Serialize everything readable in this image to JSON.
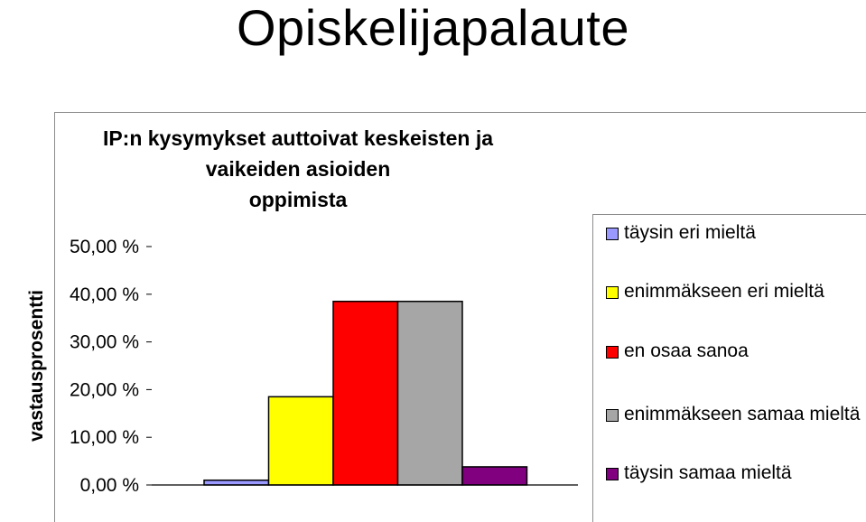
{
  "slide": {
    "title": "Opiskelijapalaute"
  },
  "chart_data": {
    "type": "bar",
    "title": "IP:n kysymykset auttoivat keskeisten ja vaikeiden asioiden oppimista",
    "title_lines": [
      "IP:n kysymykset auttoivat keskeisten ja vaikeiden asioiden",
      "oppimista"
    ],
    "xlabel": "",
    "ylabel": "vastausprosentti",
    "ylim": [
      0,
      50
    ],
    "yticks": [
      0,
      10,
      20,
      30,
      40,
      50
    ],
    "ytick_labels": [
      "0,00 %",
      "10,00 %",
      "20,00 %",
      "30,00 %",
      "40,00 %",
      "50,00 %"
    ],
    "grid": false,
    "legend_position": "right",
    "series": [
      {
        "name": "täysin eri mieltä",
        "values": [
          1.0
        ],
        "color": "#9999ff"
      },
      {
        "name": "enimmäkseen eri mieltä",
        "values": [
          18.5
        ],
        "color": "#ffff00"
      },
      {
        "name": "en osaa sanoa",
        "values": [
          38.5
        ],
        "color": "#ff0000"
      },
      {
        "name": "enimmäkseen samaa mieltä",
        "values": [
          38.5
        ],
        "color": "#a6a6a6"
      },
      {
        "name": "täysin samaa mieltä",
        "values": [
          3.8
        ],
        "color": "#800080"
      }
    ]
  }
}
